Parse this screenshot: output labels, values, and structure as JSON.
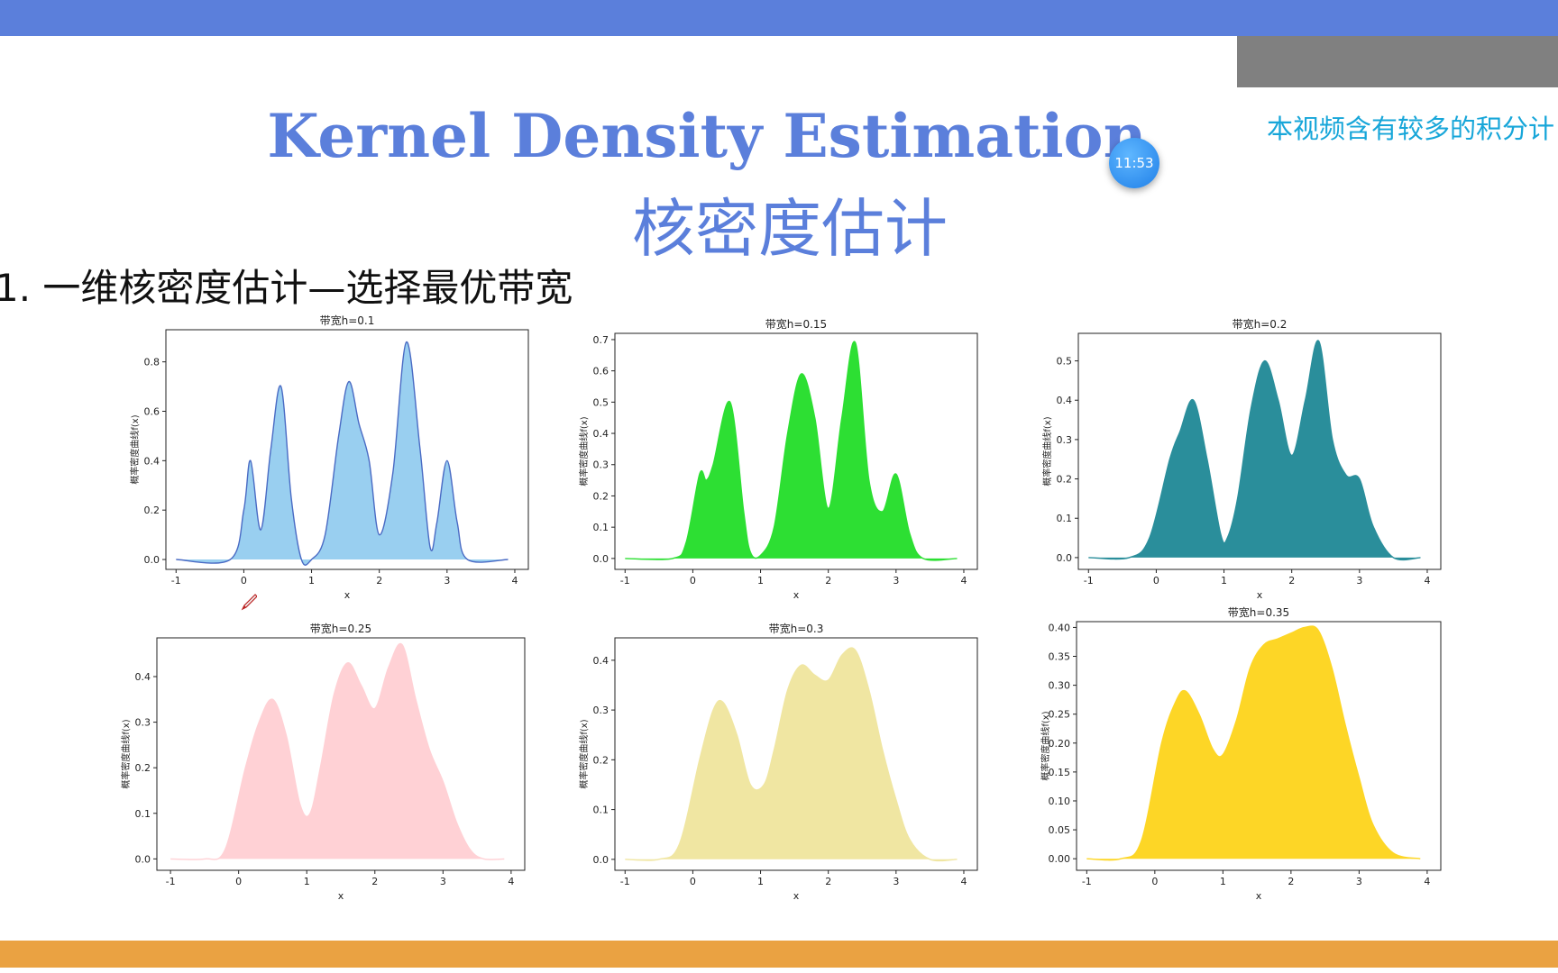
{
  "slide": {
    "title_en": "Kernel Density Estimation",
    "title_zh": "核密度估计",
    "subtitle": "1.  一维核密度估计—选择最优带宽",
    "notice": "本视频含有较多的积分计",
    "clock": "11:53"
  },
  "colors": {
    "top_bar": "#5b7fdb",
    "bottom_bar": "#eaa242",
    "title": "#5b7fdb",
    "notice": "#17a6d9"
  },
  "chart_data": [
    {
      "type": "area",
      "title": "带宽h=0.1",
      "xlabel": "x",
      "ylabel": "概率密度曲线f(x)",
      "xlim": [
        -1.15,
        4.2
      ],
      "ylim": [
        -0.04,
        0.93
      ],
      "xticks": [
        "-1",
        "0",
        "1",
        "2",
        "3",
        "4"
      ],
      "yticks": [
        0.0,
        0.2,
        0.4,
        0.6,
        0.8
      ],
      "ytick_labels": [
        "0.0",
        "0.2",
        "0.4",
        "0.6",
        "0.8"
      ],
      "fill": "#99cff0",
      "stroke": "#4a6bc4",
      "x": [
        -1,
        -0.2,
        0,
        0.1,
        0.25,
        0.4,
        0.55,
        0.7,
        0.85,
        1.0,
        1.2,
        1.4,
        1.55,
        1.7,
        1.85,
        2.0,
        2.2,
        2.4,
        2.6,
        2.75,
        2.85,
        3.0,
        3.15,
        3.3,
        3.9
      ],
      "y": [
        0,
        0,
        0.2,
        0.4,
        0.12,
        0.45,
        0.7,
        0.25,
        0.0,
        0.0,
        0.1,
        0.5,
        0.72,
        0.55,
        0.4,
        0.1,
        0.35,
        0.88,
        0.45,
        0.05,
        0.15,
        0.4,
        0.15,
        0,
        0
      ]
    },
    {
      "type": "area",
      "title": "带宽h=0.15",
      "xlabel": "x",
      "ylabel": "概率密度曲线f(x)",
      "xlim": [
        -1.15,
        4.2
      ],
      "ylim": [
        -0.035,
        0.72
      ],
      "xticks": [
        "-1",
        "0",
        "1",
        "2",
        "3",
        "4"
      ],
      "yticks": [
        0.0,
        0.1,
        0.2,
        0.3,
        0.4,
        0.5,
        0.6,
        0.7
      ],
      "ytick_labels": [
        "0.0",
        "0.1",
        "0.2",
        "0.3",
        "0.4",
        "0.5",
        "0.6",
        "0.7"
      ],
      "fill": "#2ddf33",
      "stroke": "#2ddf33",
      "x": [
        -1,
        -0.3,
        -0.1,
        0.1,
        0.2,
        0.3,
        0.55,
        0.75,
        0.85,
        1.0,
        1.2,
        1.4,
        1.6,
        1.8,
        2.0,
        2.2,
        2.4,
        2.6,
        2.8,
        3.0,
        3.2,
        3.4,
        3.9
      ],
      "y": [
        0,
        0,
        0.05,
        0.27,
        0.25,
        0.3,
        0.5,
        0.15,
        0.02,
        0.01,
        0.1,
        0.4,
        0.59,
        0.45,
        0.16,
        0.45,
        0.69,
        0.25,
        0.15,
        0.27,
        0.08,
        0,
        0
      ]
    },
    {
      "type": "area",
      "title": "带宽h=0.2",
      "xlabel": "x",
      "ylabel": "概率密度曲线f(x)",
      "xlim": [
        -1.15,
        4.2
      ],
      "ylim": [
        -0.03,
        0.57
      ],
      "xticks": [
        "-1",
        "0",
        "1",
        "2",
        "3",
        "4"
      ],
      "yticks": [
        0.0,
        0.1,
        0.2,
        0.3,
        0.4,
        0.5
      ],
      "ytick_labels": [
        "0.0",
        "0.1",
        "0.2",
        "0.3",
        "0.4",
        "0.5"
      ],
      "fill": "#2a8e9b",
      "stroke": "#2a8e9b",
      "x": [
        -1,
        -0.4,
        -0.1,
        0.2,
        0.35,
        0.55,
        0.75,
        0.95,
        1.05,
        1.2,
        1.4,
        1.6,
        1.8,
        2.0,
        2.2,
        2.4,
        2.6,
        2.8,
        3.0,
        3.2,
        3.5,
        3.9
      ],
      "y": [
        0,
        0,
        0.05,
        0.25,
        0.32,
        0.4,
        0.25,
        0.06,
        0.05,
        0.15,
        0.38,
        0.5,
        0.4,
        0.26,
        0.4,
        0.55,
        0.3,
        0.21,
        0.2,
        0.08,
        0,
        0
      ]
    },
    {
      "type": "area",
      "title": "带宽h=0.25",
      "xlabel": "x",
      "ylabel": "概率密度曲线f(x)",
      "xlim": [
        -1.2,
        4.2
      ],
      "ylim": [
        -0.025,
        0.485
      ],
      "xticks": [
        "-1",
        "0",
        "1",
        "2",
        "3",
        "4"
      ],
      "yticks": [
        0.0,
        0.1,
        0.2,
        0.3,
        0.4
      ],
      "ytick_labels": [
        "0.0",
        "0.1",
        "0.2",
        "0.3",
        "0.4"
      ],
      "fill": "#ffd1d5",
      "stroke": "#ffd1d5",
      "x": [
        -1,
        -0.5,
        -0.2,
        0.1,
        0.3,
        0.5,
        0.7,
        0.9,
        1.05,
        1.2,
        1.4,
        1.6,
        1.8,
        2.0,
        2.2,
        2.4,
        2.6,
        2.8,
        3.0,
        3.2,
        3.4,
        3.6,
        3.9
      ],
      "y": [
        0,
        0,
        0.02,
        0.2,
        0.3,
        0.35,
        0.27,
        0.12,
        0.1,
        0.2,
        0.36,
        0.43,
        0.38,
        0.33,
        0.42,
        0.47,
        0.35,
        0.24,
        0.17,
        0.08,
        0.02,
        0,
        0
      ]
    },
    {
      "type": "area",
      "title": "带宽h=0.3",
      "xlabel": "x",
      "ylabel": "概率密度曲线f(x)",
      "xlim": [
        -1.15,
        4.2
      ],
      "ylim": [
        -0.022,
        0.445
      ],
      "xticks": [
        "-1",
        "0",
        "1",
        "2",
        "3",
        "4"
      ],
      "yticks": [
        0.0,
        0.1,
        0.2,
        0.3,
        0.4
      ],
      "ytick_labels": [
        "0.0",
        "0.1",
        "0.2",
        "0.3",
        "0.4"
      ],
      "fill": "#f0e6a2",
      "stroke": "#f0e6a2",
      "x": [
        -1,
        -0.5,
        -0.2,
        0.1,
        0.3,
        0.45,
        0.65,
        0.85,
        1.05,
        1.2,
        1.4,
        1.6,
        1.8,
        2.0,
        2.2,
        2.4,
        2.6,
        2.8,
        3.0,
        3.2,
        3.5,
        3.9
      ],
      "y": [
        0,
        0,
        0.03,
        0.2,
        0.3,
        0.315,
        0.25,
        0.15,
        0.15,
        0.22,
        0.34,
        0.39,
        0.37,
        0.36,
        0.41,
        0.42,
        0.34,
        0.22,
        0.12,
        0.04,
        0,
        0
      ]
    },
    {
      "type": "area",
      "title": "带宽h=0.35",
      "xlabel": "x",
      "ylabel": "概率密度曲线f(x)",
      "xlim": [
        -1.15,
        4.2
      ],
      "ylim": [
        -0.02,
        0.41
      ],
      "xticks": [
        "-1",
        "0",
        "1",
        "2",
        "3",
        "4"
      ],
      "yticks": [
        0.0,
        0.05,
        0.1,
        0.15,
        0.2,
        0.25,
        0.3,
        0.35,
        0.4
      ],
      "ytick_labels": [
        "0.00",
        "0.05",
        "0.10",
        "0.15",
        "0.20",
        "0.25",
        "0.30",
        "0.35",
        "0.40"
      ],
      "fill": "#fdd626",
      "stroke": "#fdd626",
      "x": [
        -1,
        -0.5,
        -0.2,
        0.1,
        0.3,
        0.45,
        0.65,
        0.85,
        1.0,
        1.2,
        1.4,
        1.6,
        1.8,
        2.0,
        2.2,
        2.4,
        2.6,
        2.8,
        3.0,
        3.2,
        3.5,
        3.9
      ],
      "y": [
        0,
        0,
        0.03,
        0.2,
        0.27,
        0.29,
        0.25,
        0.19,
        0.18,
        0.24,
        0.33,
        0.37,
        0.38,
        0.39,
        0.4,
        0.395,
        0.33,
        0.23,
        0.14,
        0.06,
        0.01,
        0
      ]
    }
  ]
}
